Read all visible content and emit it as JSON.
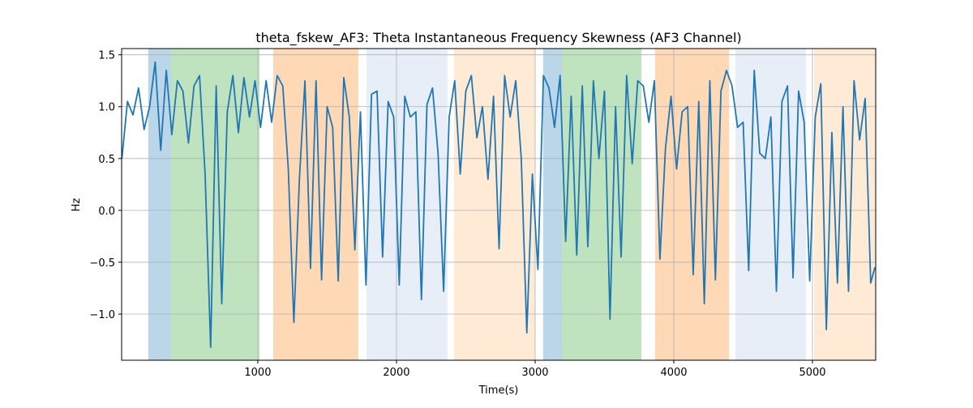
{
  "chart_data": {
    "type": "line",
    "title": "theta_fskew_AF3: Theta Instantaneous Frequency Skewness (AF3 Channel)",
    "xlabel": "Time(s)",
    "ylabel": "Hz",
    "x": [
      20,
      60,
      100,
      140,
      180,
      220,
      260,
      300,
      340,
      380,
      420,
      460,
      500,
      540,
      580,
      620,
      660,
      700,
      740,
      780,
      820,
      860,
      900,
      940,
      980,
      1020,
      1060,
      1100,
      1140,
      1180,
      1220,
      1260,
      1300,
      1340,
      1380,
      1420,
      1460,
      1500,
      1540,
      1580,
      1620,
      1660,
      1700,
      1740,
      1780,
      1820,
      1860,
      1900,
      1940,
      1980,
      2020,
      2060,
      2100,
      2140,
      2180,
      2220,
      2260,
      2300,
      2340,
      2380,
      2420,
      2460,
      2500,
      2540,
      2580,
      2620,
      2660,
      2700,
      2740,
      2780,
      2820,
      2860,
      2900,
      2940,
      2980,
      3020,
      3060,
      3100,
      3140,
      3180,
      3220,
      3260,
      3300,
      3340,
      3380,
      3420,
      3460,
      3500,
      3540,
      3580,
      3620,
      3660,
      3700,
      3740,
      3780,
      3820,
      3860,
      3900,
      3940,
      3980,
      4020,
      4060,
      4100,
      4140,
      4180,
      4220,
      4260,
      4300,
      4340,
      4380,
      4420,
      4460,
      4500,
      4540,
      4580,
      4620,
      4660,
      4700,
      4740,
      4780,
      4820,
      4860,
      4900,
      4940,
      4980,
      5020,
      5060,
      5100,
      5140,
      5180,
      5220,
      5260,
      5300,
      5340,
      5380,
      5420,
      5450
    ],
    "series": [
      {
        "color": "#1f77b4",
        "values": [
          0.5,
          1.05,
          0.92,
          1.18,
          0.78,
          1.0,
          1.43,
          0.58,
          1.35,
          0.73,
          1.25,
          1.15,
          0.65,
          1.2,
          1.3,
          0.35,
          -1.32,
          1.2,
          -0.9,
          0.95,
          1.3,
          0.75,
          1.28,
          0.9,
          1.25,
          0.8,
          1.25,
          0.85,
          1.3,
          1.2,
          0.4,
          -1.08,
          0.3,
          1.25,
          -0.56,
          1.25,
          -0.67,
          1.0,
          0.8,
          -0.68,
          1.28,
          0.9,
          -0.38,
          0.95,
          -0.72,
          1.12,
          1.15,
          -0.45,
          1.05,
          0.9,
          -0.72,
          1.1,
          0.9,
          0.95,
          -0.86,
          1.02,
          1.18,
          0.55,
          -0.78,
          0.9,
          1.25,
          0.35,
          1.15,
          1.3,
          0.7,
          1.0,
          0.3,
          1.1,
          -0.37,
          1.3,
          0.9,
          1.25,
          0.5,
          -1.18,
          0.35,
          -0.57,
          1.3,
          1.18,
          0.8,
          1.3,
          -0.3,
          1.1,
          -0.43,
          1.2,
          -0.35,
          1.25,
          0.5,
          1.15,
          -1.05,
          1.0,
          -0.45,
          1.3,
          0.45,
          1.25,
          1.2,
          0.85,
          1.25,
          -0.47,
          0.6,
          1.1,
          0.4,
          0.95,
          1.0,
          -0.62,
          1.05,
          -0.9,
          1.25,
          -0.67,
          1.15,
          1.35,
          1.2,
          0.8,
          0.85,
          -0.58,
          1.35,
          0.55,
          0.5,
          0.9,
          -0.78,
          1.05,
          1.2,
          -0.65,
          1.15,
          0.85,
          -0.68,
          0.9,
          1.22,
          -1.15,
          0.75,
          -0.7,
          1.0,
          -0.78,
          1.25,
          0.68,
          1.08,
          -0.7,
          -0.55
        ]
      }
    ],
    "regions": [
      {
        "start": 210,
        "end": 374,
        "color": "#1f77b4",
        "opacity": 0.3
      },
      {
        "start": 374,
        "end": 1012,
        "color": "#2ca02c",
        "opacity": 0.3
      },
      {
        "start": 1111,
        "end": 1725,
        "color": "#ff7f0e",
        "opacity": 0.3
      },
      {
        "start": 1784,
        "end": 2368,
        "color": "#aec7e8",
        "opacity": 0.3
      },
      {
        "start": 2415,
        "end": 3000,
        "color": "#ffbb78",
        "opacity": 0.3
      },
      {
        "start": 3058,
        "end": 3193,
        "color": "#1f77b4",
        "opacity": 0.3
      },
      {
        "start": 3193,
        "end": 3766,
        "color": "#2ca02c",
        "opacity": 0.3
      },
      {
        "start": 3865,
        "end": 4398,
        "color": "#ff7f0e",
        "opacity": 0.3
      },
      {
        "start": 4444,
        "end": 4953,
        "color": "#aec7e8",
        "opacity": 0.3
      },
      {
        "start": 5012,
        "end": 5456,
        "color": "#ffbb78",
        "opacity": 0.3
      }
    ],
    "xlim": [
      18,
      5456
    ],
    "ylim": [
      -1.445,
      1.56
    ],
    "xticks": [
      1000,
      2000,
      3000,
      4000,
      5000
    ],
    "yticks": [
      {
        "value": -1.0,
        "label": "−1.0"
      },
      {
        "value": -0.5,
        "label": "−0.5"
      },
      {
        "value": 0,
        "label": "0.0"
      },
      {
        "value": 0.5,
        "label": "0.5"
      },
      {
        "value": 1.0,
        "label": "1.0"
      },
      {
        "value": 1.5,
        "label": "1.5"
      }
    ],
    "grid": true
  }
}
